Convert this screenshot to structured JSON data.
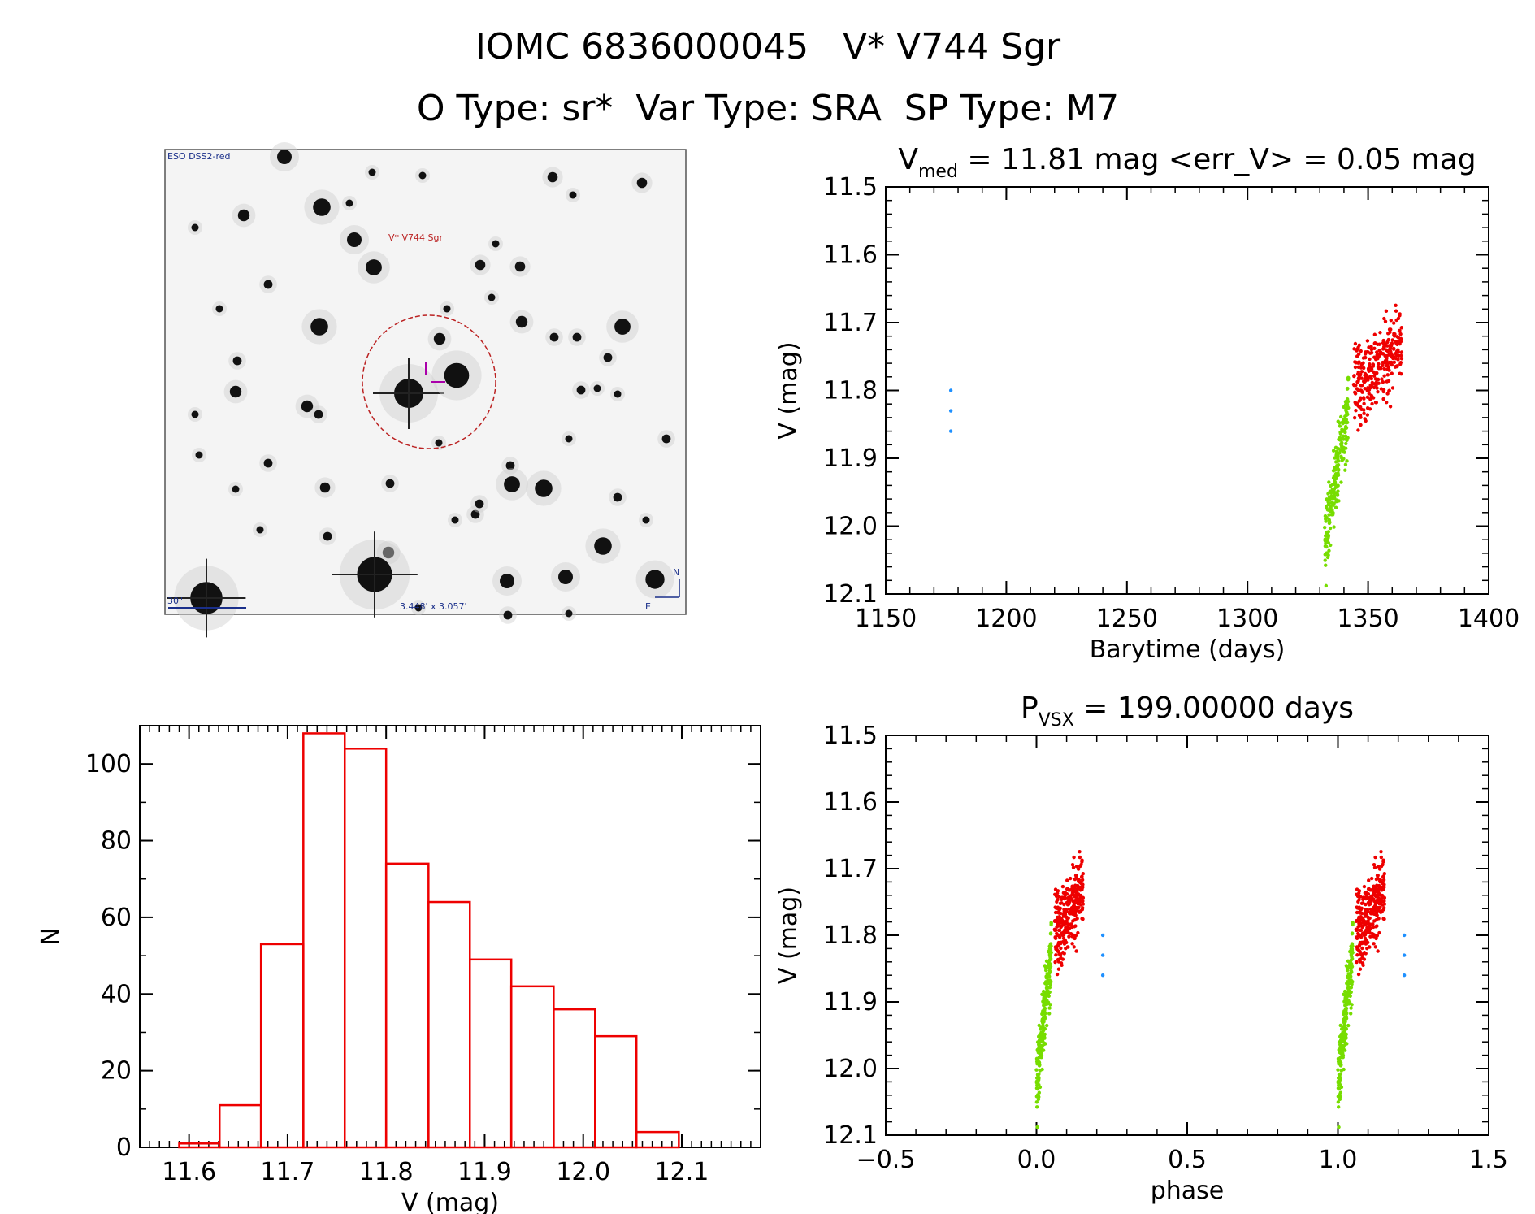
{
  "header": {
    "line1": "IOMC 6836000045   V* V744 Sgr",
    "line2": "O Type: sr*  Var Type: SRA  SP Type: M7"
  },
  "colors": {
    "early": "#77dd00",
    "late": "#ee0000",
    "isolated": "#1e90ff",
    "hist": "#ee0000"
  },
  "finder": {
    "survey_label": "ESO DSS2-red",
    "target_label": "V* V744 Sgr",
    "scale_label": "30\"",
    "fov_label": "3.448' x 3.057'",
    "north_label": "N",
    "east_label": "E"
  },
  "chart_data": [
    {
      "id": "light-curve",
      "type": "scatter",
      "title_main": "V",
      "title_sub": "med",
      "title_rest": " = 11.81 mag <err_V> = 0.05 mag",
      "xlabel": "Barytime (days)",
      "ylabel": "V (mag)",
      "xlim": [
        1150,
        1400
      ],
      "ylim": [
        12.1,
        11.5
      ],
      "xticks": [
        "1150",
        "1200",
        "1250",
        "1300",
        "1350",
        "1400"
      ],
      "yticks": [
        "11.5",
        "11.6",
        "11.7",
        "11.8",
        "11.9",
        "12.0",
        "12.1"
      ],
      "series": [
        {
          "color": "isolated",
          "points": [
            [
              1177,
              11.8
            ],
            [
              1177,
              11.83
            ],
            [
              1177,
              11.86
            ]
          ]
        },
        {
          "color": "early",
          "x_range": [
            1332,
            1342
          ],
          "y_start": 12.03,
          "y_end": 11.82,
          "scatter": 0.05,
          "n": 210
        },
        {
          "color": "late",
          "x_range": [
            1344,
            1364
          ],
          "y_start": 11.8,
          "y_end": 11.73,
          "scatter": 0.06,
          "n": 300
        }
      ]
    },
    {
      "id": "histogram",
      "type": "bar",
      "xlabel": "V (mag)",
      "ylabel": "N",
      "xlim": [
        11.55,
        12.18
      ],
      "ylim": [
        0,
        110
      ],
      "xticks": [
        "11.6",
        "11.7",
        "11.8",
        "11.9",
        "12.0",
        "12.1"
      ],
      "yticks": [
        "0",
        "20",
        "40",
        "60",
        "80",
        "100"
      ],
      "bin_edges": [
        11.59,
        11.631,
        11.673,
        11.716,
        11.758,
        11.8,
        11.843,
        11.885,
        11.927,
        11.97,
        12.012,
        12.054,
        12.097
      ],
      "counts": [
        1,
        11,
        53,
        108,
        104,
        74,
        64,
        49,
        42,
        36,
        29,
        4
      ]
    },
    {
      "id": "phase-curve",
      "type": "scatter",
      "title_main": "P",
      "title_sub": "VSX",
      "title_rest": " = 199.00000 days",
      "xlabel": "phase",
      "ylabel": "V (mag)",
      "xlim": [
        -0.5,
        1.5
      ],
      "ylim": [
        12.1,
        11.5
      ],
      "xticks": [
        "−0.5",
        "0.0",
        "0.5",
        "1.0",
        "1.5"
      ],
      "yticks": [
        "11.5",
        "11.6",
        "11.7",
        "11.8",
        "11.9",
        "12.0",
        "12.1"
      ],
      "period_days": 199.0,
      "series": [
        {
          "color": "isolated",
          "phase": 0.22,
          "points": [
            11.8,
            11.83,
            11.86
          ]
        },
        {
          "color": "early",
          "phase_range": [
            0.0,
            0.05
          ],
          "y_start": 12.03,
          "y_end": 11.82,
          "scatter": 0.05,
          "n": 210
        },
        {
          "color": "late",
          "phase_range": [
            0.06,
            0.155
          ],
          "y_start": 11.8,
          "y_end": 11.73,
          "scatter": 0.06,
          "n": 300
        }
      ]
    }
  ]
}
